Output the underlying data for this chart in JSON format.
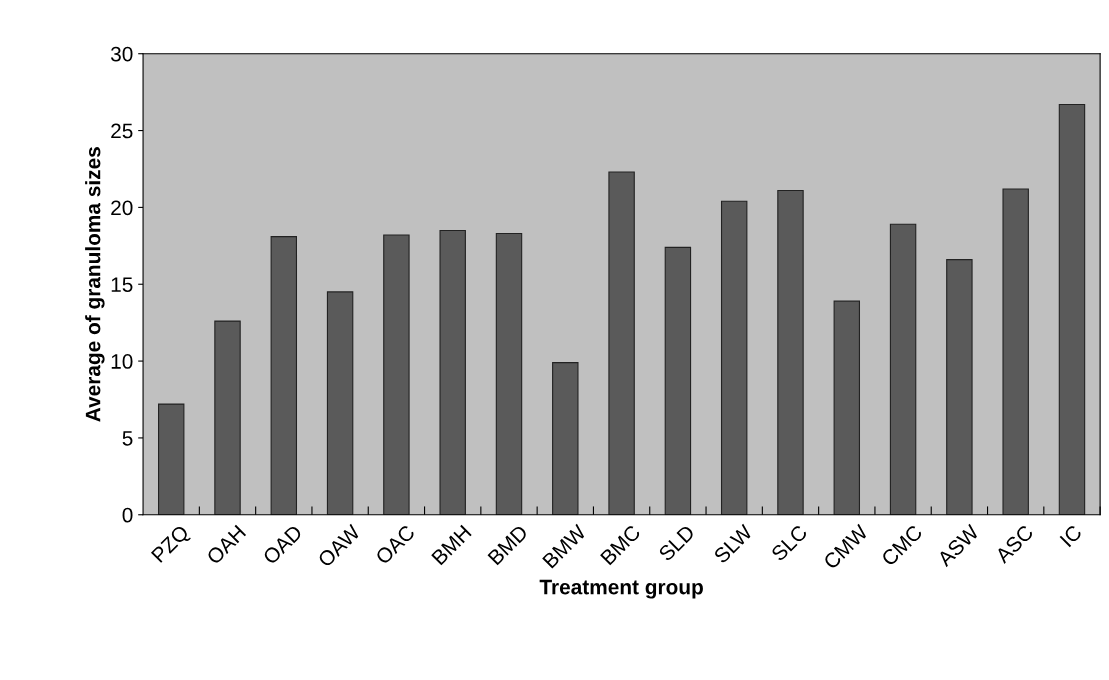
{
  "chart_data": {
    "type": "bar",
    "xlabel": "Treatment group",
    "ylabel": "Average of granuloma sizes",
    "categories": [
      "PZQ",
      "OAH",
      "OAD",
      "OAW",
      "OAC",
      "BMH",
      "BMD",
      "BMW",
      "BMC",
      "SLD",
      "SLW",
      "SLC",
      "CMW",
      "CMC",
      "ASW",
      "ASC",
      "IC"
    ],
    "values": [
      7.2,
      12.6,
      18.1,
      14.5,
      18.2,
      18.5,
      18.3,
      9.9,
      22.3,
      17.4,
      20.4,
      21.1,
      13.9,
      18.9,
      16.6,
      21.2,
      26.7
    ],
    "color": "#5a5a5a",
    "ylim": [
      0,
      30
    ],
    "yticks": [
      0,
      5,
      10,
      15,
      20,
      25,
      30
    ],
    "grid": false,
    "legend": false
  }
}
